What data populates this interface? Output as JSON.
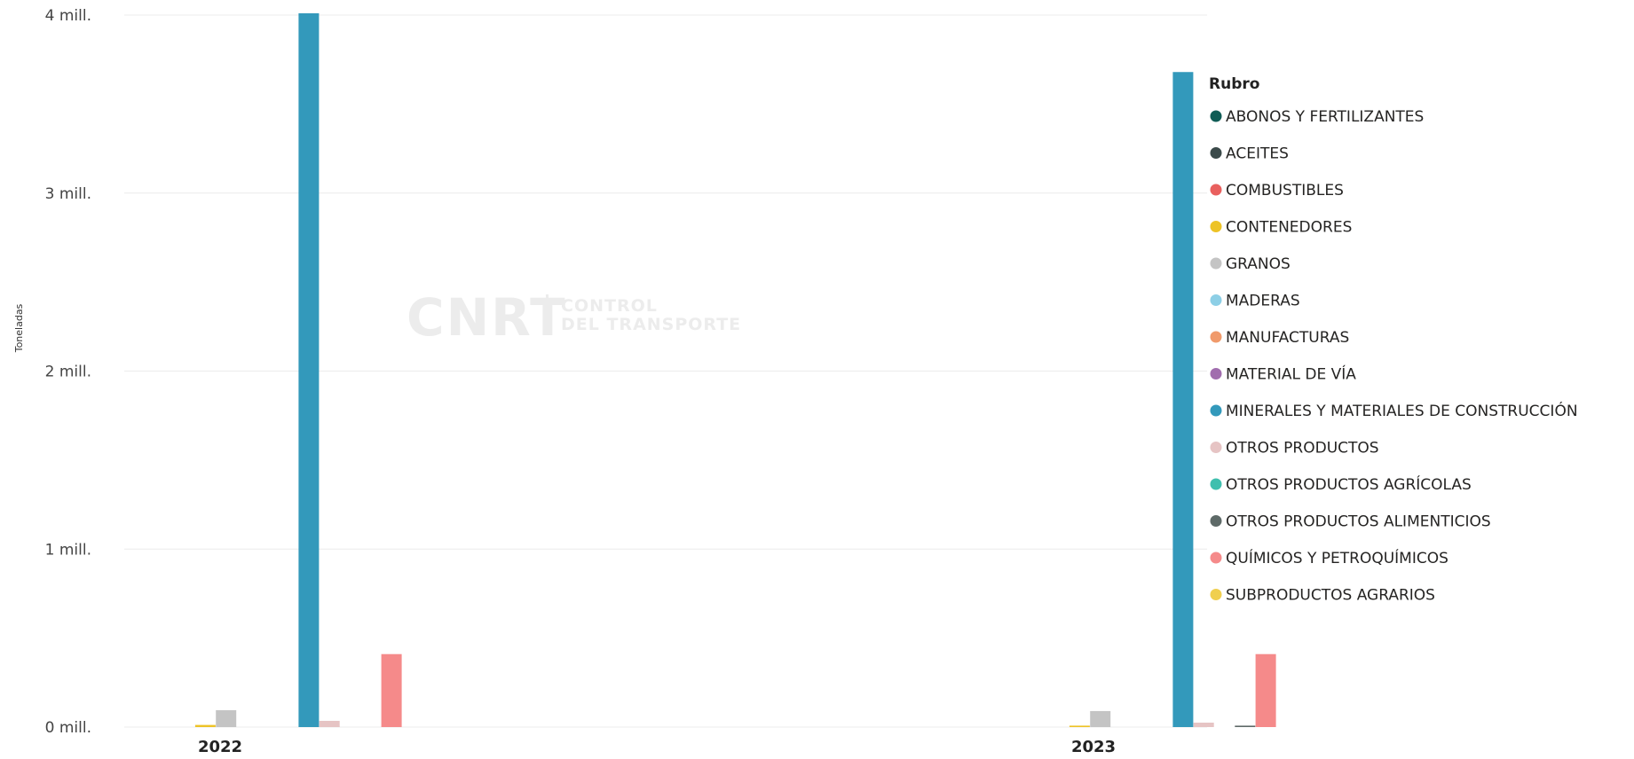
{
  "watermark": {
    "brand": "CNRT",
    "line1": "CONTROL",
    "line2": "DEL TRANSPORTE"
  },
  "chart_data": {
    "type": "bar",
    "categories": [
      "2022",
      "2023"
    ],
    "ylabel": "Toneladas",
    "xlabel": "",
    "ylim": [
      0,
      4000000
    ],
    "yticks": [
      {
        "value": 0,
        "label": "0 mill."
      },
      {
        "value": 1000000,
        "label": "1 mill."
      },
      {
        "value": 2000000,
        "label": "2 mill."
      },
      {
        "value": 3000000,
        "label": "3 mill."
      },
      {
        "value": 4000000,
        "label": "4 mill."
      }
    ],
    "grid": true,
    "legend": {
      "title": "Rubro",
      "position": "right"
    },
    "series": [
      {
        "name": "ABONOS Y FERTILIZANTES",
        "color": "#0F5C55",
        "values": [
          0,
          0
        ]
      },
      {
        "name": "ACEITES",
        "color": "#3B4A4A",
        "values": [
          0,
          0
        ]
      },
      {
        "name": "COMBUSTIBLES",
        "color": "#E9605E",
        "values": [
          0,
          0
        ]
      },
      {
        "name": "CONTENEDORES",
        "color": "#EDC326",
        "values": [
          12000,
          8000
        ]
      },
      {
        "name": "GRANOS",
        "color": "#C4C4C4",
        "values": [
          95000,
          90000
        ]
      },
      {
        "name": "MADERAS",
        "color": "#8DCFE6",
        "values": [
          0,
          0
        ]
      },
      {
        "name": "MANUFACTURAS",
        "color": "#F09A6B",
        "values": [
          0,
          0
        ]
      },
      {
        "name": "MATERIAL DE VÍA",
        "color": "#A16DAE",
        "values": [
          0,
          0
        ]
      },
      {
        "name": "MINERALES Y MATERIALES DE CONSTRUCCIÓN",
        "color": "#3399BB",
        "values": [
          4010000,
          3680000
        ]
      },
      {
        "name": "OTROS PRODUCTOS",
        "color": "#E6C4C4",
        "values": [
          35000,
          25000
        ]
      },
      {
        "name": "OTROS PRODUCTOS AGRÍCOLAS",
        "color": "#3FBFAE",
        "values": [
          0,
          0
        ]
      },
      {
        "name": "OTROS PRODUCTOS ALIMENTICIOS",
        "color": "#5E6A68",
        "values": [
          0,
          8000
        ]
      },
      {
        "name": "QUÍMICOS Y PETROQUÍMICOS",
        "color": "#F58A8A",
        "values": [
          410000,
          410000
        ]
      },
      {
        "name": "SUBPRODUCTOS AGRARIOS",
        "color": "#F0CF4F",
        "values": [
          0,
          0
        ]
      }
    ]
  }
}
